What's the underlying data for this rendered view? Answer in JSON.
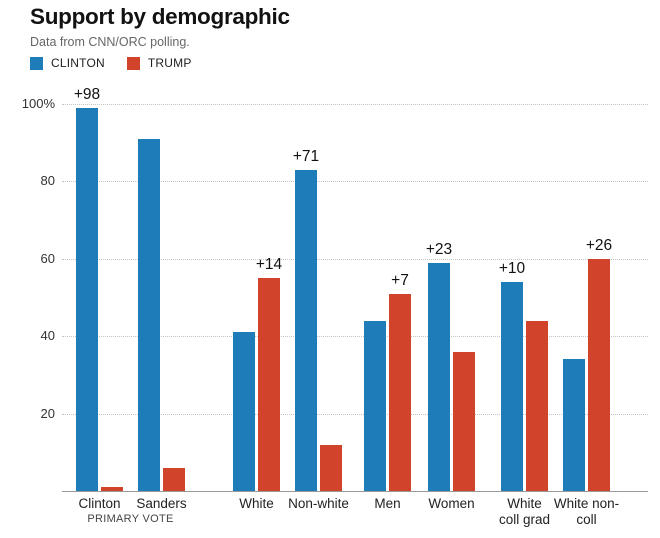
{
  "chart_data": {
    "type": "bar",
    "title": "Support by demographic",
    "subtitle": "Data from CNN/ORC polling.",
    "legend_position": "top-left",
    "grid": "horizontal-dotted",
    "value_unit": "%",
    "ylim": [
      0,
      100
    ],
    "yticks": [
      20,
      40,
      60,
      80,
      100
    ],
    "ytick_labels": [
      "20",
      "40",
      "60",
      "80",
      "100%"
    ],
    "categories": [
      "Clinton",
      "Sanders",
      "White",
      "Non-white",
      "Men",
      "Women",
      "White\ncoll grad",
      "White non-\ncoll"
    ],
    "category_note": {
      "text": "PRIMARY VOTE",
      "applies_to": [
        "Clinton",
        "Sanders"
      ]
    },
    "series": [
      {
        "name": "CLINTON",
        "color": "#1e7cb8",
        "values": [
          99,
          91,
          41,
          83,
          44,
          59,
          54,
          34
        ]
      },
      {
        "name": "TRUMP",
        "color": "#d1432b",
        "values": [
          1,
          6,
          55,
          12,
          51,
          36,
          44,
          60
        ]
      }
    ],
    "annotations": [
      {
        "category": "Clinton",
        "series": "CLINTON",
        "text": "+98"
      },
      {
        "category": "White",
        "series": "TRUMP",
        "text": "+14"
      },
      {
        "category": "Non-white",
        "series": "CLINTON",
        "text": "+71"
      },
      {
        "category": "Men",
        "series": "TRUMP",
        "text": "+7"
      },
      {
        "category": "Women",
        "series": "CLINTON",
        "text": "+23"
      },
      {
        "category": "White\ncoll grad",
        "series": "CLINTON",
        "text": "+10"
      },
      {
        "category": "White non-\ncoll",
        "series": "TRUMP",
        "text": "+26"
      }
    ]
  }
}
